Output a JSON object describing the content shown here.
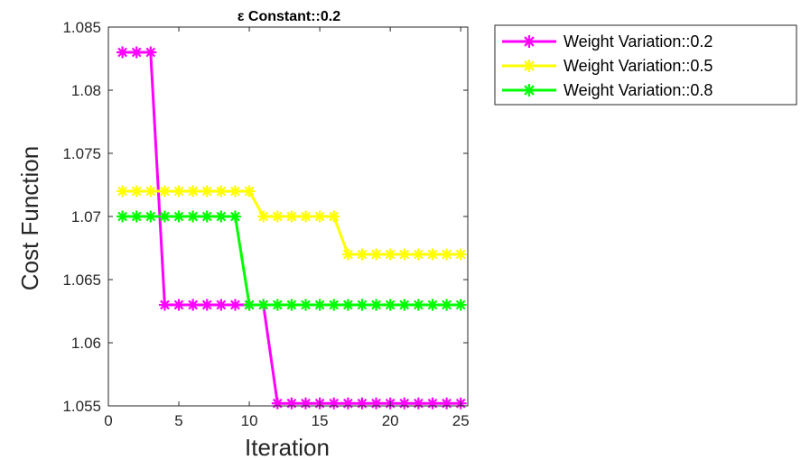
{
  "chart_data": {
    "type": "line",
    "title": "ε Constant::0.2",
    "xlabel": "Iteration",
    "ylabel": "Cost Function",
    "xlim": [
      0,
      25.5
    ],
    "ylim": [
      1.055,
      1.085
    ],
    "xticks": [
      0,
      5,
      10,
      15,
      20,
      25
    ],
    "xtick_labels": [
      "0",
      "5",
      "10",
      "15",
      "20",
      "25"
    ],
    "yticks": [
      1.055,
      1.06,
      1.065,
      1.07,
      1.075,
      1.08,
      1.085
    ],
    "ytick_labels": [
      "1.055",
      "1.06",
      "1.065",
      "1.07",
      "1.075",
      "1.08",
      "1.085"
    ],
    "grid": false,
    "legend_position": "outside-top-right",
    "marker": "asterisk",
    "x": [
      1,
      2,
      3,
      4,
      5,
      6,
      7,
      8,
      9,
      10,
      11,
      12,
      13,
      14,
      15,
      16,
      17,
      18,
      19,
      20,
      21,
      22,
      23,
      24,
      25
    ],
    "series": [
      {
        "name": "Weight Variation::0.2",
        "color": "#ff00ff",
        "values": [
          1.083,
          1.083,
          1.083,
          1.063,
          1.063,
          1.063,
          1.063,
          1.063,
          1.063,
          1.063,
          1.063,
          1.0552,
          1.0552,
          1.0552,
          1.0552,
          1.0552,
          1.0552,
          1.0552,
          1.0552,
          1.0552,
          1.0552,
          1.0552,
          1.0552,
          1.0552,
          1.0552
        ]
      },
      {
        "name": "Weight Variation::0.5",
        "color": "#ffff00",
        "values": [
          1.072,
          1.072,
          1.072,
          1.072,
          1.072,
          1.072,
          1.072,
          1.072,
          1.072,
          1.072,
          1.07,
          1.07,
          1.07,
          1.07,
          1.07,
          1.07,
          1.067,
          1.067,
          1.067,
          1.067,
          1.067,
          1.067,
          1.067,
          1.067,
          1.067
        ]
      },
      {
        "name": "Weight Variation::0.8",
        "color": "#00ff00",
        "values": [
          1.07,
          1.07,
          1.07,
          1.07,
          1.07,
          1.07,
          1.07,
          1.07,
          1.07,
          1.063,
          1.063,
          1.063,
          1.063,
          1.063,
          1.063,
          1.063,
          1.063,
          1.063,
          1.063,
          1.063,
          1.063,
          1.063,
          1.063,
          1.063,
          1.063
        ]
      }
    ]
  }
}
